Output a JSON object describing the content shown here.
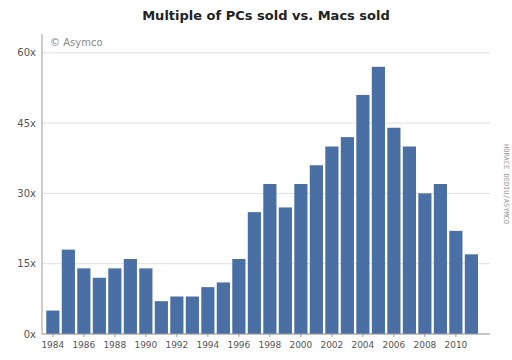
{
  "chart_data": {
    "type": "bar",
    "title": "Multiple of PCs sold vs. Macs sold",
    "annotations": [
      "© Asymco",
      "HORACE DEDIU/ASYMCO"
    ],
    "x": [
      1984,
      1985,
      1986,
      1987,
      1988,
      1989,
      1990,
      1991,
      1992,
      1993,
      1994,
      1995,
      1996,
      1997,
      1998,
      1999,
      2000,
      2001,
      2002,
      2003,
      2004,
      2005,
      2006,
      2007,
      2008,
      2009,
      2010,
      2011
    ],
    "values": [
      5,
      18,
      14,
      12,
      14,
      16,
      14,
      7,
      8,
      8,
      10,
      11,
      16,
      26,
      32,
      27,
      32,
      36,
      40,
      42,
      51,
      57,
      44,
      40,
      30,
      32,
      22,
      17
    ],
    "color": "#4A6FA5",
    "xlim": [
      1983.3,
      2012.2
    ],
    "xticks": [
      1984,
      1986,
      1988,
      1990,
      1992,
      1994,
      1996,
      1998,
      2000,
      2002,
      2004,
      2006,
      2008,
      2010
    ],
    "ylim": [
      0,
      64
    ],
    "yticks": [
      {
        "value": 0,
        "label": "0x"
      },
      {
        "value": 15,
        "label": "15x"
      },
      {
        "value": 30,
        "label": "30x"
      },
      {
        "value": 45,
        "label": "45x"
      },
      {
        "value": 60,
        "label": "60x"
      }
    ],
    "grid": true
  }
}
